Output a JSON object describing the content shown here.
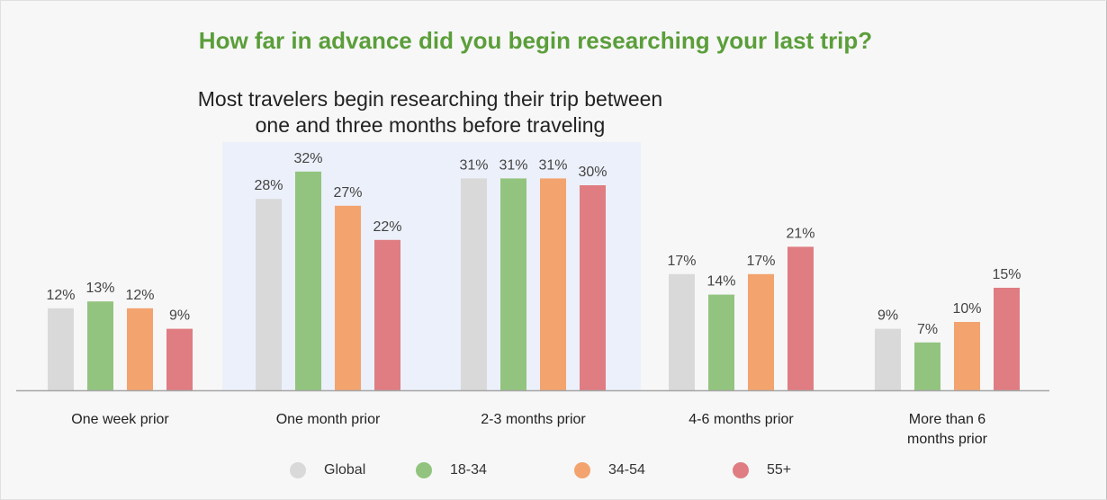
{
  "chart_data": {
    "type": "bar",
    "title": "How far in advance did you begin researching your last trip?",
    "subtitle": "Most travelers begin researching their trip between one and three months before traveling",
    "subtitle_lines": [
      "Most travelers begin researching their trip between",
      "one and three months before traveling"
    ],
    "categories": [
      [
        "One week prior"
      ],
      [
        "One month prior"
      ],
      [
        "2-3 months prior"
      ],
      [
        "4-6 months prior"
      ],
      [
        "More than 6",
        "months prior"
      ]
    ],
    "series": [
      {
        "name": "Global",
        "color": "#d9d9d9",
        "values": [
          12,
          28,
          31,
          17,
          9
        ],
        "labels": [
          "12%",
          "28%",
          "31%",
          "17%",
          "9%"
        ]
      },
      {
        "name": "18-34",
        "color": "#92c47f",
        "values": [
          13,
          32,
          31,
          14,
          7
        ],
        "labels": [
          "13%",
          "32%",
          "31%",
          "14%",
          "7%"
        ]
      },
      {
        "name": "34-54",
        "color": "#f3a36e",
        "values": [
          12,
          27,
          31,
          17,
          10
        ],
        "labels": [
          "12%",
          "27%",
          "31%",
          "17%",
          "10%"
        ]
      },
      {
        "name": "55+",
        "color": "#df7d82",
        "values": [
          9,
          22,
          30,
          21,
          15
        ],
        "labels": [
          "9%",
          "22%",
          "30%",
          "21%",
          "15%"
        ]
      }
    ],
    "ylim": [
      0,
      35
    ],
    "highlight_categories": [
      1,
      2
    ],
    "highlight_color": "#ecf0fa",
    "grid": false,
    "legend_position": "bottom"
  }
}
